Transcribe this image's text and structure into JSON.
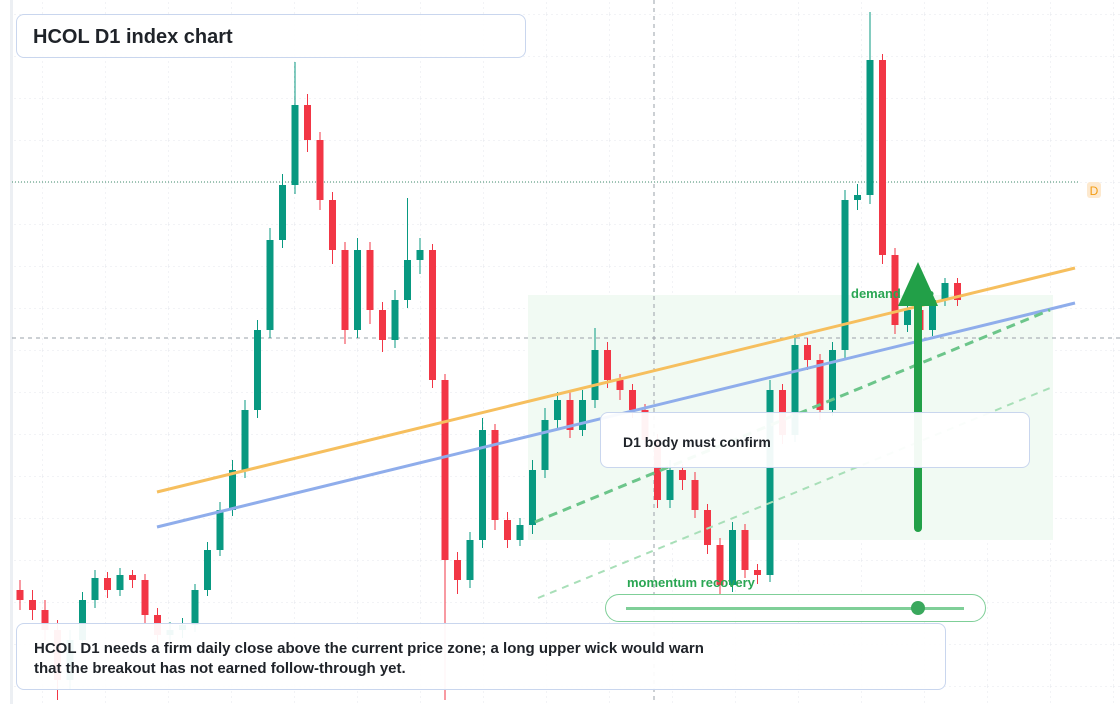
{
  "chart_data": {
    "type": "candlestick",
    "title": "HCOL D1 index chart",
    "ylim": [
      0,
      704
    ],
    "up_color": "#089981",
    "down_color": "#f23645",
    "open": [
      114,
      104,
      94,
      74,
      24,
      64,
      104,
      126,
      114,
      129,
      124,
      89,
      69,
      74,
      79,
      114,
      154,
      194,
      234,
      294,
      374,
      464,
      519,
      599,
      564,
      504,
      454,
      374,
      454,
      394,
      364,
      404,
      444,
      454,
      324,
      144,
      124,
      164,
      274,
      184,
      164,
      179,
      234,
      284,
      304,
      274,
      304,
      354,
      324,
      314,
      294,
      264,
      204,
      234,
      224,
      194,
      159,
      119,
      174,
      134,
      129,
      314,
      269,
      359,
      344,
      294,
      354,
      504,
      509,
      644,
      449,
      379,
      394,
      374,
      404,
      421
    ],
    "high": [
      124,
      114,
      104,
      84,
      74,
      112,
      134,
      132,
      136,
      134,
      130,
      96,
      82,
      86,
      120,
      162,
      202,
      244,
      304,
      384,
      476,
      530,
      642,
      610,
      572,
      512,
      462,
      466,
      462,
      402,
      414,
      506,
      466,
      460,
      330,
      152,
      172,
      286,
      280,
      192,
      186,
      244,
      296,
      312,
      312,
      314,
      376,
      362,
      330,
      320,
      300,
      270,
      244,
      240,
      232,
      200,
      166,
      182,
      180,
      140,
      324,
      320,
      370,
      366,
      350,
      362,
      514,
      520,
      692,
      650,
      456,
      402,
      400,
      412,
      426,
      426
    ],
    "low": [
      94,
      84,
      64,
      4,
      14,
      56,
      96,
      106,
      108,
      116,
      80,
      60,
      62,
      66,
      72,
      108,
      148,
      188,
      226,
      286,
      366,
      456,
      510,
      552,
      494,
      440,
      360,
      366,
      380,
      352,
      356,
      396,
      430,
      316,
      4,
      110,
      116,
      156,
      174,
      156,
      158,
      170,
      226,
      276,
      266,
      268,
      296,
      316,
      304,
      286,
      256,
      196,
      196,
      214,
      186,
      150,
      110,
      112,
      126,
      120,
      122,
      260,
      262,
      334,
      284,
      288,
      346,
      494,
      500,
      440,
      370,
      372,
      366,
      368,
      398,
      398
    ],
    "close": [
      104,
      94,
      74,
      24,
      64,
      104,
      126,
      114,
      129,
      124,
      89,
      69,
      74,
      79,
      114,
      154,
      194,
      234,
      294,
      374,
      464,
      519,
      599,
      564,
      504,
      454,
      374,
      454,
      394,
      364,
      404,
      444,
      454,
      324,
      144,
      124,
      164,
      274,
      184,
      164,
      179,
      234,
      284,
      304,
      274,
      304,
      354,
      324,
      314,
      294,
      264,
      204,
      234,
      224,
      194,
      159,
      119,
      174,
      134,
      129,
      314,
      269,
      359,
      344,
      294,
      354,
      504,
      509,
      644,
      449,
      379,
      394,
      374,
      404,
      421,
      404
    ],
    "annotations": {
      "zone_label": "demand zone",
      "confirm_note": "D1 body must confirm",
      "momentum_label": "momentum recovery",
      "marker": "D",
      "commentary": "HCOL D1 needs a firm daily close above the current price zone; a long upper wick would warn that the breakout has not earned follow-through yet."
    }
  }
}
